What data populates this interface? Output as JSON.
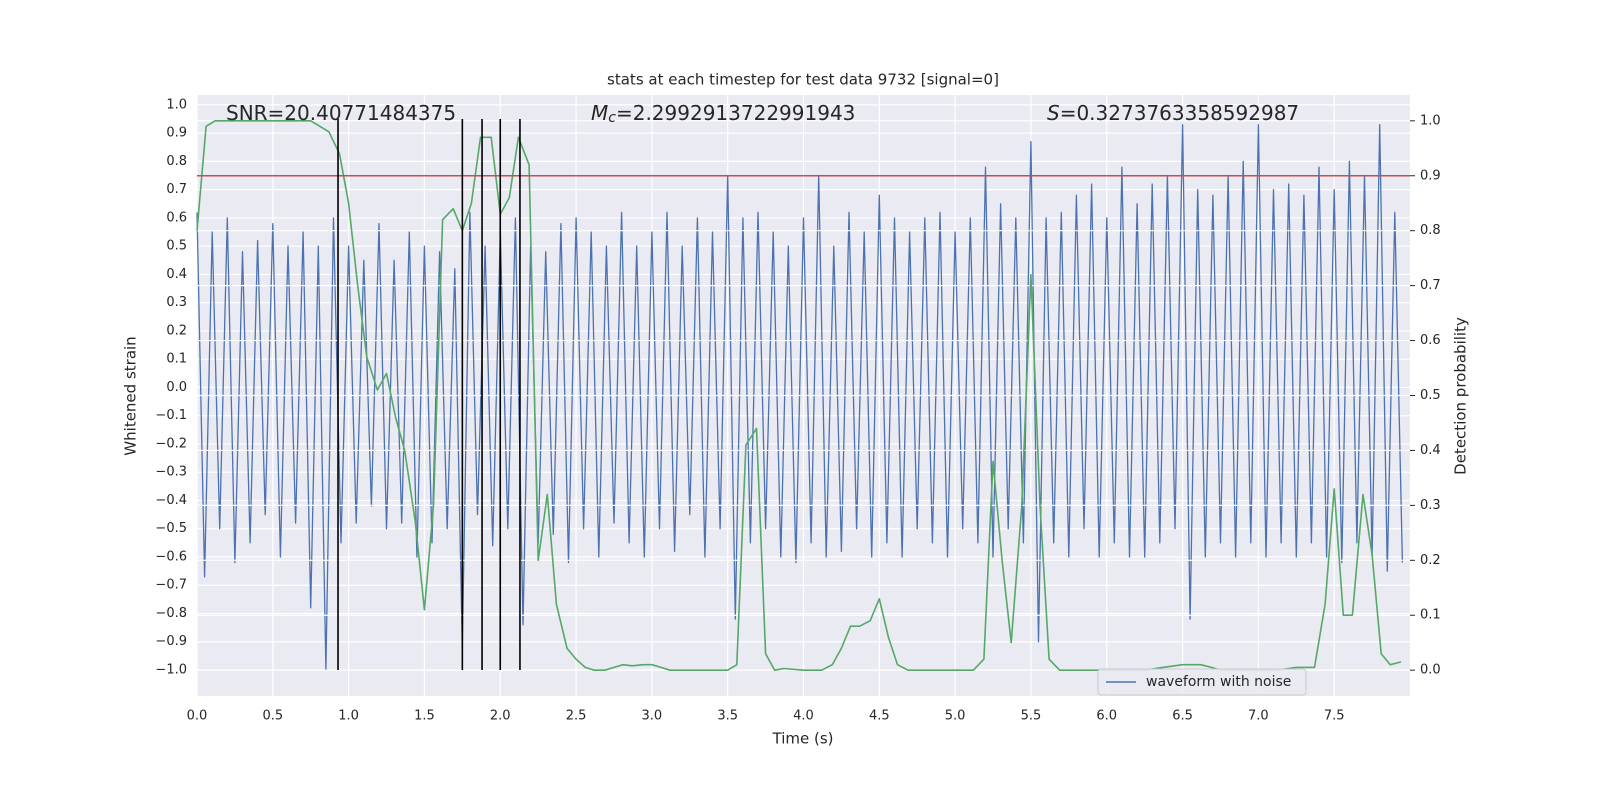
{
  "chart_data": {
    "type": "line",
    "title": "stats at each timestep for test data 9732 [signal=0]",
    "xlabel": "Time (s)",
    "ylabel": "Whitened strain",
    "y2label": "Detection probability",
    "xlim": [
      0,
      8.0
    ],
    "ylim": [
      -1.092,
      1.035
    ],
    "y2lim": [
      -0.047,
      1.047
    ],
    "xticks": [
      {
        "value": 0,
        "label": "0.0"
      },
      {
        "value": 0.5,
        "label": "0.5"
      },
      {
        "value": 1,
        "label": "1.0"
      },
      {
        "value": 1.5,
        "label": "1.5"
      },
      {
        "value": 2,
        "label": "2.0"
      },
      {
        "value": 2.5,
        "label": "2.5"
      },
      {
        "value": 3,
        "label": "3.0"
      },
      {
        "value": 3.5,
        "label": "3.5"
      },
      {
        "value": 4,
        "label": "4.0"
      },
      {
        "value": 4.5,
        "label": "4.5"
      },
      {
        "value": 5,
        "label": "5.0"
      },
      {
        "value": 5.5,
        "label": "5.5"
      },
      {
        "value": 6,
        "label": "6.0"
      },
      {
        "value": 6.5,
        "label": "6.5"
      },
      {
        "value": 7,
        "label": "7.0"
      },
      {
        "value": 7.5,
        "label": "7.5"
      }
    ],
    "yticks": [
      {
        "value": -1,
        "label": "−1.0"
      },
      {
        "value": -0.9,
        "label": "−0.9"
      },
      {
        "value": -0.8,
        "label": "−0.8"
      },
      {
        "value": -0.7,
        "label": "−0.7"
      },
      {
        "value": -0.6,
        "label": "−0.6"
      },
      {
        "value": -0.5,
        "label": "−0.5"
      },
      {
        "value": -0.4,
        "label": "−0.4"
      },
      {
        "value": -0.3,
        "label": "−0.3"
      },
      {
        "value": -0.2,
        "label": "−0.2"
      },
      {
        "value": -0.1,
        "label": "−0.1"
      },
      {
        "value": 0,
        "label": "0.0"
      },
      {
        "value": 0.1,
        "label": "0.1"
      },
      {
        "value": 0.2,
        "label": "0.2"
      },
      {
        "value": 0.3,
        "label": "0.3"
      },
      {
        "value": 0.4,
        "label": "0.4"
      },
      {
        "value": 0.5,
        "label": "0.5"
      },
      {
        "value": 0.6,
        "label": "0.6"
      },
      {
        "value": 0.7,
        "label": "0.7"
      },
      {
        "value": 0.8,
        "label": "0.8"
      },
      {
        "value": 0.9,
        "label": "0.9"
      },
      {
        "value": 1,
        "label": "1.0"
      }
    ],
    "y2ticks": [
      {
        "value": 0,
        "label": "0.0"
      },
      {
        "value": 0.1,
        "label": "0.1"
      },
      {
        "value": 0.2,
        "label": "0.2"
      },
      {
        "value": 0.3,
        "label": "0.3"
      },
      {
        "value": 0.4,
        "label": "0.4"
      },
      {
        "value": 0.5,
        "label": "0.5"
      },
      {
        "value": 0.6,
        "label": "0.6"
      },
      {
        "value": 0.7,
        "label": "0.7"
      },
      {
        "value": 0.8,
        "label": "0.8"
      },
      {
        "value": 0.9,
        "label": "0.9"
      },
      {
        "value": 1,
        "label": "1.0"
      }
    ],
    "grid": true,
    "legend": "lower right",
    "annotations": [
      {
        "text": "SNR=20.40771484375"
      },
      {
        "symbol": "M",
        "subscript": "c",
        "text": "=2.2992913722991943"
      },
      {
        "symbol": "S",
        "text": "=0.3273763358592987"
      }
    ],
    "hlines": [
      {
        "y": 0.9,
        "axis": "y2",
        "color": "#c44e52"
      }
    ],
    "vlines": {
      "x": [
        0.93,
        1.75,
        1.88,
        2.0,
        2.13
      ],
      "ymin": -1.0,
      "ymax": 0.95,
      "color": "#000000"
    },
    "series": [
      {
        "name": "waveform with noise",
        "color": "#4c72b0",
        "x_step": 0.05,
        "values": [
          0.62,
          -0.67,
          0.55,
          -0.5,
          0.6,
          -0.62,
          0.48,
          -0.55,
          0.52,
          -0.45,
          0.58,
          -0.6,
          0.5,
          -0.48,
          0.55,
          -0.78,
          0.5,
          -1.0,
          0.6,
          -0.55,
          0.5,
          -0.48,
          0.45,
          -0.42,
          0.58,
          -0.5,
          0.45,
          -0.48,
          0.55,
          -0.6,
          0.5,
          -0.55,
          0.48,
          -0.5,
          0.42,
          -0.92,
          0.62,
          -0.45,
          0.5,
          -0.56,
          0.55,
          -0.5,
          0.6,
          -0.84,
          0.5,
          -0.55,
          0.48,
          -0.52,
          0.58,
          -0.62,
          0.6,
          -0.5,
          0.55,
          -0.6,
          0.5,
          -0.48,
          0.62,
          -0.55,
          0.5,
          -0.6,
          0.55,
          -0.5,
          0.62,
          -0.58,
          0.5,
          -0.45,
          0.6,
          -0.6,
          0.55,
          -0.5,
          0.75,
          -0.82,
          0.6,
          -0.55,
          0.62,
          -0.5,
          0.55,
          -0.6,
          0.5,
          -0.62,
          0.6,
          -0.55,
          0.75,
          -0.6,
          0.5,
          -0.58,
          0.62,
          -0.5,
          0.55,
          -0.6,
          0.68,
          -0.55,
          0.6,
          -0.6,
          0.55,
          -0.5,
          0.6,
          -0.55,
          0.62,
          -0.6,
          0.55,
          -0.5,
          0.6,
          -0.55,
          0.78,
          -0.6,
          0.65,
          -0.5,
          0.6,
          -0.55,
          0.87,
          -0.9,
          0.6,
          -0.55,
          0.62,
          -0.6,
          0.68,
          -0.5,
          0.72,
          -0.6,
          0.6,
          -0.55,
          0.78,
          -0.6,
          0.65,
          -0.6,
          0.72,
          -0.55,
          0.75,
          -0.5,
          0.93,
          -0.82,
          0.7,
          -0.6,
          0.68,
          -0.55,
          0.75,
          -0.6,
          0.8,
          -0.55,
          0.93,
          -0.6,
          0.7,
          -0.55,
          0.72,
          -0.6,
          0.68,
          -0.55,
          0.78,
          -0.6,
          0.7,
          -0.62,
          0.8,
          -0.55,
          0.75,
          -0.6,
          0.93,
          -0.65,
          0.62,
          -0.62
        ]
      },
      {
        "axis": "y2",
        "color": "#55a868",
        "x": [
          0,
          0.06,
          0.12,
          0.25,
          0.5,
          0.75,
          0.81,
          0.87,
          0.94,
          1.0,
          1.06,
          1.12,
          1.19,
          1.25,
          1.31,
          1.37,
          1.44,
          1.5,
          1.56,
          1.62,
          1.69,
          1.75,
          1.81,
          1.87,
          1.94,
          2.0,
          2.06,
          2.12,
          2.19,
          2.25,
          2.31,
          2.37,
          2.44,
          2.5,
          2.56,
          2.62,
          2.69,
          2.75,
          2.81,
          2.87,
          2.94,
          3.0,
          3.06,
          3.12,
          3.25,
          3.37,
          3.5,
          3.56,
          3.62,
          3.69,
          3.75,
          3.81,
          3.87,
          4.0,
          4.12,
          4.19,
          4.25,
          4.31,
          4.37,
          4.44,
          4.5,
          4.56,
          4.62,
          4.69,
          4.87,
          5.0,
          5.12,
          5.19,
          5.25,
          5.31,
          5.37,
          5.44,
          5.5,
          5.56,
          5.62,
          5.69,
          5.87,
          6.0,
          6.25,
          6.37,
          6.5,
          6.62,
          6.69,
          6.75,
          6.87,
          7.0,
          7.12,
          7.25,
          7.37,
          7.44,
          7.5,
          7.56,
          7.62,
          7.69,
          7.75,
          7.81,
          7.87,
          7.94
        ],
        "values": [
          0.8,
          0.99,
          1.0,
          1.0,
          1.0,
          1.0,
          0.99,
          0.98,
          0.94,
          0.85,
          0.7,
          0.57,
          0.51,
          0.54,
          0.46,
          0.4,
          0.27,
          0.11,
          0.3,
          0.82,
          0.84,
          0.8,
          0.85,
          0.97,
          0.97,
          0.83,
          0.86,
          0.97,
          0.92,
          0.2,
          0.32,
          0.12,
          0.04,
          0.02,
          0.005,
          0.0,
          0.0,
          0.005,
          0.01,
          0.008,
          0.01,
          0.01,
          0.005,
          0.0,
          0.0,
          0.0,
          0.0,
          0.01,
          0.41,
          0.44,
          0.03,
          0.0,
          0.003,
          0.0,
          0.0,
          0.01,
          0.04,
          0.08,
          0.08,
          0.09,
          0.13,
          0.06,
          0.01,
          0.0,
          0.0,
          0.0,
          0.0,
          0.02,
          0.38,
          0.2,
          0.05,
          0.3,
          0.72,
          0.3,
          0.02,
          0.0,
          0.0,
          0.0,
          0.0,
          0.005,
          0.01,
          0.01,
          0.005,
          0.0,
          0.0,
          0.0,
          0.0,
          0.005,
          0.005,
          0.12,
          0.33,
          0.1,
          0.1,
          0.32,
          0.21,
          0.03,
          0.01,
          0.015
        ]
      }
    ]
  }
}
